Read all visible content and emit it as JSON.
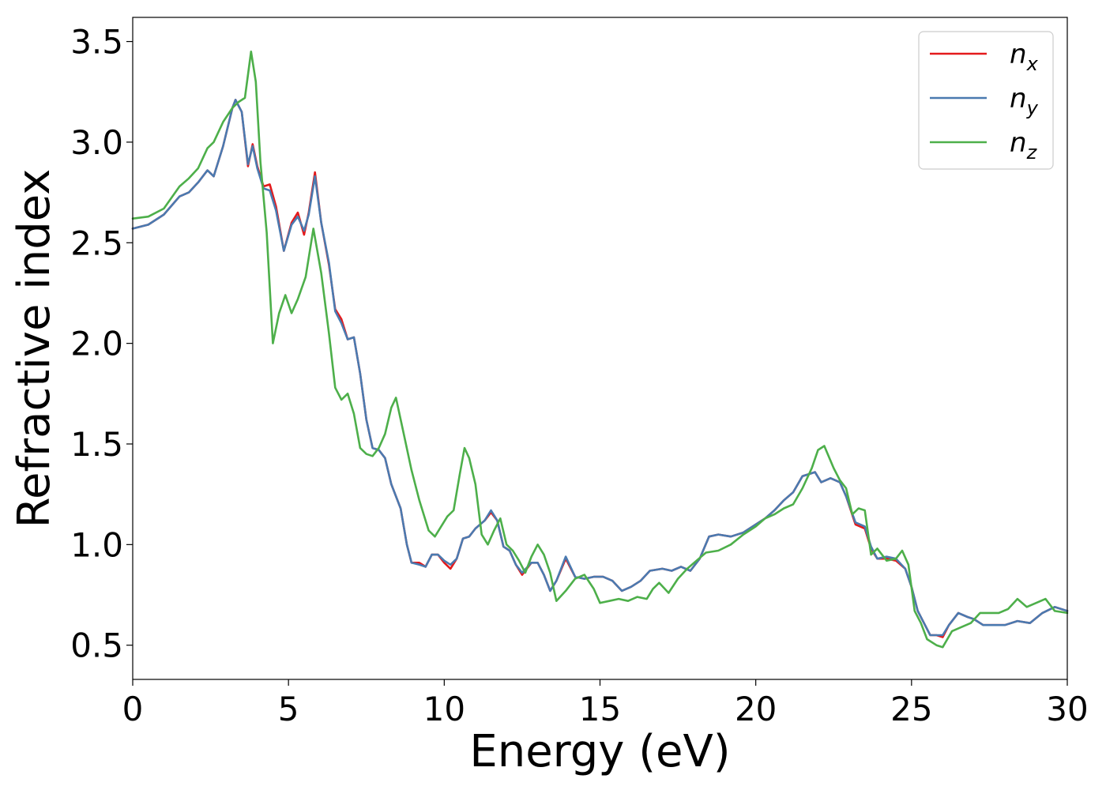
{
  "chart_data": {
    "type": "line",
    "xlabel": "Energy (eV)",
    "ylabel": "Refractive index",
    "xlim": [
      0,
      30
    ],
    "ylim": [
      0.33,
      3.62
    ],
    "xticks": [
      "0",
      "5",
      "10",
      "15",
      "20",
      "25",
      "30"
    ],
    "yticks": [
      "0.5",
      "1.0",
      "1.5",
      "2.0",
      "2.5",
      "3.0",
      "3.5"
    ],
    "grid": false,
    "legend_position": "top-right",
    "series": [
      {
        "name": "n",
        "subscript": "x",
        "color": "#e41a1c",
        "x": [
          0,
          0.5,
          1.0,
          1.5,
          1.8,
          2.1,
          2.4,
          2.6,
          2.9,
          3.2,
          3.3,
          3.5,
          3.7,
          3.85,
          4.0,
          4.2,
          4.4,
          4.6,
          4.85,
          5.1,
          5.3,
          5.5,
          5.65,
          5.85,
          6.05,
          6.3,
          6.5,
          6.7,
          6.9,
          7.1,
          7.3,
          7.5,
          7.7,
          7.9,
          8.1,
          8.3,
          8.6,
          8.8,
          8.95,
          9.2,
          9.4,
          9.6,
          9.8,
          10.0,
          10.2,
          10.4,
          10.6,
          10.8,
          11.0,
          11.3,
          11.5,
          11.7,
          11.9,
          12.1,
          12.3,
          12.5,
          12.8,
          13.0,
          13.2,
          13.4,
          13.6,
          13.9,
          14.2,
          14.5,
          14.8,
          15.1,
          15.4,
          15.7,
          16.0,
          16.3,
          16.6,
          17.0,
          17.3,
          17.6,
          17.9,
          18.2,
          18.5,
          18.8,
          19.2,
          19.6,
          20.0,
          20.3,
          20.6,
          20.9,
          21.2,
          21.5,
          21.7,
          21.9,
          22.1,
          22.4,
          22.7,
          22.9,
          23.2,
          23.5,
          23.7,
          23.9,
          24.2,
          24.5,
          24.8,
          25.0,
          25.2,
          25.4,
          25.6,
          25.8,
          26.0,
          26.2,
          26.5,
          26.8,
          27.0,
          27.3,
          27.6,
          28.0,
          28.4,
          28.8,
          29.2,
          29.6,
          30.0
        ],
        "y": [
          2.57,
          2.59,
          2.64,
          2.73,
          2.75,
          2.8,
          2.86,
          2.83,
          2.98,
          3.17,
          3.21,
          3.15,
          2.88,
          2.99,
          2.88,
          2.78,
          2.79,
          2.68,
          2.46,
          2.6,
          2.65,
          2.54,
          2.65,
          2.85,
          2.6,
          2.39,
          2.17,
          2.12,
          2.02,
          2.03,
          1.85,
          1.62,
          1.48,
          1.47,
          1.43,
          1.3,
          1.18,
          1.0,
          0.91,
          0.91,
          0.89,
          0.95,
          0.95,
          0.91,
          0.88,
          0.93,
          1.03,
          1.04,
          1.08,
          1.12,
          1.16,
          1.12,
          0.99,
          0.97,
          0.9,
          0.85,
          0.91,
          0.91,
          0.85,
          0.77,
          0.82,
          0.93,
          0.84,
          0.83,
          0.84,
          0.84,
          0.82,
          0.77,
          0.79,
          0.82,
          0.87,
          0.88,
          0.87,
          0.89,
          0.87,
          0.93,
          1.04,
          1.05,
          1.04,
          1.06,
          1.1,
          1.13,
          1.17,
          1.22,
          1.26,
          1.34,
          1.35,
          1.36,
          1.31,
          1.33,
          1.31,
          1.24,
          1.1,
          1.08,
          0.98,
          0.93,
          0.93,
          0.92,
          0.88,
          0.79,
          0.67,
          0.61,
          0.55,
          0.55,
          0.54,
          0.6,
          0.66,
          0.64,
          0.63,
          0.6,
          0.6,
          0.6,
          0.62,
          0.61,
          0.66,
          0.69,
          0.67
        ]
      },
      {
        "name": "n",
        "subscript": "y",
        "color": "#4a7ab0",
        "x": [
          0,
          0.5,
          1.0,
          1.5,
          1.8,
          2.1,
          2.4,
          2.6,
          2.9,
          3.2,
          3.3,
          3.5,
          3.7,
          3.85,
          4.0,
          4.2,
          4.4,
          4.6,
          4.85,
          5.1,
          5.3,
          5.5,
          5.65,
          5.85,
          6.05,
          6.3,
          6.5,
          6.7,
          6.9,
          7.1,
          7.3,
          7.5,
          7.7,
          7.9,
          8.1,
          8.3,
          8.6,
          8.8,
          8.95,
          9.2,
          9.4,
          9.6,
          9.8,
          10.0,
          10.2,
          10.4,
          10.6,
          10.8,
          11.0,
          11.3,
          11.5,
          11.7,
          11.9,
          12.1,
          12.3,
          12.5,
          12.8,
          13.0,
          13.2,
          13.4,
          13.6,
          13.9,
          14.2,
          14.5,
          14.8,
          15.1,
          15.4,
          15.7,
          16.0,
          16.3,
          16.6,
          17.0,
          17.3,
          17.6,
          17.9,
          18.2,
          18.5,
          18.8,
          19.2,
          19.6,
          20.0,
          20.3,
          20.6,
          20.9,
          21.2,
          21.5,
          21.7,
          21.9,
          22.1,
          22.4,
          22.7,
          22.9,
          23.2,
          23.5,
          23.7,
          23.9,
          24.2,
          24.5,
          24.8,
          25.0,
          25.2,
          25.4,
          25.6,
          25.8,
          26.0,
          26.2,
          26.5,
          26.8,
          27.0,
          27.3,
          27.6,
          28.0,
          28.4,
          28.8,
          29.2,
          29.6,
          30.0
        ],
        "y": [
          2.57,
          2.59,
          2.64,
          2.73,
          2.75,
          2.8,
          2.86,
          2.83,
          2.98,
          3.17,
          3.21,
          3.15,
          2.89,
          2.98,
          2.87,
          2.77,
          2.76,
          2.66,
          2.46,
          2.59,
          2.63,
          2.56,
          2.64,
          2.83,
          2.6,
          2.4,
          2.16,
          2.1,
          2.02,
          2.03,
          1.85,
          1.62,
          1.48,
          1.47,
          1.43,
          1.3,
          1.18,
          1.0,
          0.91,
          0.9,
          0.89,
          0.95,
          0.95,
          0.92,
          0.9,
          0.93,
          1.03,
          1.04,
          1.08,
          1.12,
          1.17,
          1.12,
          0.99,
          0.97,
          0.9,
          0.86,
          0.91,
          0.91,
          0.85,
          0.77,
          0.82,
          0.94,
          0.84,
          0.83,
          0.84,
          0.84,
          0.82,
          0.77,
          0.79,
          0.82,
          0.87,
          0.88,
          0.87,
          0.89,
          0.87,
          0.93,
          1.04,
          1.05,
          1.04,
          1.06,
          1.1,
          1.13,
          1.17,
          1.22,
          1.26,
          1.34,
          1.35,
          1.36,
          1.31,
          1.33,
          1.31,
          1.24,
          1.11,
          1.09,
          0.99,
          0.93,
          0.94,
          0.93,
          0.88,
          0.79,
          0.67,
          0.61,
          0.55,
          0.55,
          0.55,
          0.6,
          0.66,
          0.64,
          0.63,
          0.6,
          0.6,
          0.6,
          0.62,
          0.61,
          0.66,
          0.69,
          0.67
        ]
      },
      {
        "name": "n",
        "subscript": "z",
        "color": "#4daf4a",
        "x": [
          0,
          0.5,
          1.0,
          1.5,
          1.8,
          2.1,
          2.4,
          2.6,
          2.9,
          3.2,
          3.4,
          3.6,
          3.8,
          3.95,
          4.1,
          4.3,
          4.5,
          4.7,
          4.9,
          5.1,
          5.3,
          5.55,
          5.8,
          6.05,
          6.3,
          6.5,
          6.7,
          6.9,
          7.1,
          7.3,
          7.5,
          7.7,
          7.9,
          8.1,
          8.3,
          8.45,
          8.7,
          8.95,
          9.2,
          9.5,
          9.7,
          9.9,
          10.1,
          10.3,
          10.5,
          10.65,
          10.8,
          11.0,
          11.2,
          11.4,
          11.6,
          11.8,
          12.0,
          12.2,
          12.4,
          12.6,
          12.8,
          13.0,
          13.2,
          13.4,
          13.6,
          13.9,
          14.2,
          14.5,
          14.8,
          15.0,
          15.3,
          15.6,
          15.9,
          16.2,
          16.5,
          16.7,
          16.9,
          17.2,
          17.5,
          17.8,
          18.1,
          18.4,
          18.8,
          19.2,
          19.6,
          20.0,
          20.3,
          20.6,
          20.9,
          21.2,
          21.5,
          21.8,
          22.0,
          22.2,
          22.5,
          22.7,
          22.9,
          23.1,
          23.3,
          23.5,
          23.7,
          23.9,
          24.2,
          24.5,
          24.7,
          24.9,
          25.1,
          25.3,
          25.5,
          25.8,
          26.0,
          26.3,
          26.6,
          26.9,
          27.2,
          27.5,
          27.8,
          28.1,
          28.4,
          28.7,
          29.0,
          29.3,
          29.6,
          30.0
        ],
        "y": [
          2.62,
          2.63,
          2.67,
          2.78,
          2.82,
          2.87,
          2.97,
          3.0,
          3.1,
          3.17,
          3.2,
          3.22,
          3.45,
          3.3,
          2.9,
          2.55,
          2.0,
          2.15,
          2.24,
          2.15,
          2.22,
          2.33,
          2.57,
          2.35,
          2.05,
          1.78,
          1.72,
          1.75,
          1.65,
          1.48,
          1.45,
          1.44,
          1.48,
          1.55,
          1.68,
          1.73,
          1.55,
          1.37,
          1.22,
          1.07,
          1.04,
          1.09,
          1.14,
          1.17,
          1.35,
          1.48,
          1.43,
          1.3,
          1.05,
          1.0,
          1.07,
          1.13,
          1.0,
          0.97,
          0.92,
          0.86,
          0.94,
          1.0,
          0.95,
          0.86,
          0.72,
          0.77,
          0.83,
          0.85,
          0.78,
          0.71,
          0.72,
          0.73,
          0.72,
          0.74,
          0.73,
          0.78,
          0.81,
          0.76,
          0.83,
          0.88,
          0.92,
          0.96,
          0.97,
          1.0,
          1.05,
          1.09,
          1.13,
          1.15,
          1.18,
          1.2,
          1.28,
          1.38,
          1.47,
          1.49,
          1.38,
          1.32,
          1.28,
          1.15,
          1.18,
          1.17,
          0.95,
          0.98,
          0.92,
          0.93,
          0.97,
          0.9,
          0.67,
          0.61,
          0.53,
          0.5,
          0.49,
          0.57,
          0.59,
          0.61,
          0.66,
          0.66,
          0.66,
          0.68,
          0.73,
          0.69,
          0.71,
          0.73,
          0.67,
          0.66
        ]
      }
    ]
  }
}
